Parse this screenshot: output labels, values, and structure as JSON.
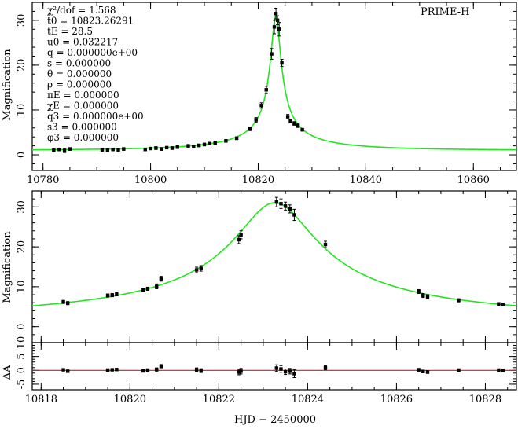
{
  "chart_data": [
    {
      "type": "scatter",
      "panel": "top",
      "title": "",
      "label": "PRIME-H",
      "xlabel": "",
      "ylabel": "Magnification",
      "xlim": [
        10778,
        10868
      ],
      "ylim": [
        -3.5,
        34
      ],
      "xticks": [
        10780,
        10800,
        10820,
        10840,
        10860
      ],
      "yticks": [
        0,
        10,
        20,
        30
      ],
      "model": {
        "t0": 10823.26291,
        "tE": 28.5,
        "u0": 0.032217
      },
      "params": [
        "χ²/dof = 1.568",
        "t0   = 10823.26291",
        "tE   = 28.5",
        "u0   = 0.032217",
        "q    = 0.000000e+00",
        "s    = 0.000000",
        "θ    = 0.000000",
        "ρ    = 0.000000",
        "πE   = 0.000000",
        "χE   = 0.000000",
        "q3   = 0.000000e+00",
        "s3   = 0.000000",
        "φ3   = 0.000000"
      ],
      "x": [
        10782,
        10783,
        10784,
        10785,
        10791,
        10792,
        10793,
        10794,
        10795,
        10799,
        10800,
        10801,
        10802,
        10803,
        10804,
        10805,
        10807,
        10808,
        10809,
        10810,
        10811,
        10812,
        10814,
        10816,
        10818.5,
        10819.6,
        10820.6,
        10821.5,
        10822.5,
        10823.0,
        10823.3,
        10823.6,
        10823.9,
        10824.4,
        10825.5,
        10826.0,
        10826.7,
        10827.4,
        10828.2
      ],
      "y": [
        1.0,
        1.2,
        0.9,
        1.3,
        1.1,
        1.0,
        1.2,
        1.1,
        1.3,
        1.2,
        1.4,
        1.5,
        1.3,
        1.6,
        1.5,
        1.7,
        2.0,
        1.9,
        2.1,
        2.3,
        2.5,
        2.6,
        3.1,
        3.7,
        5.8,
        7.8,
        11.0,
        14.5,
        22.5,
        28.5,
        31.5,
        30.0,
        28.0,
        20.5,
        8.5,
        7.5,
        7.0,
        6.5,
        5.6
      ],
      "yerr": [
        0.3,
        0.3,
        0.4,
        0.3,
        0.2,
        0.3,
        0.3,
        0.2,
        0.3,
        0.3,
        0.2,
        0.3,
        0.3,
        0.2,
        0.3,
        0.3,
        0.3,
        0.3,
        0.3,
        0.3,
        0.3,
        0.3,
        0.3,
        0.3,
        0.4,
        0.5,
        0.6,
        0.8,
        1.2,
        1.5,
        1.2,
        1.0,
        1.5,
        0.8,
        0.5,
        0.4,
        0.4,
        0.4,
        0.3
      ]
    },
    {
      "type": "scatter",
      "panel": "middle",
      "title": "",
      "xlabel": "",
      "ylabel": "Magnification",
      "xlim": [
        10817.8,
        10828.7
      ],
      "ylim": [
        -4,
        34
      ],
      "xticks": [
        10818,
        10820,
        10822,
        10824,
        10826,
        10828
      ],
      "yticks": [
        0,
        10,
        20,
        30
      ],
      "x": [
        10818.5,
        10818.6,
        10819.5,
        10819.6,
        10819.7,
        10820.3,
        10820.4,
        10820.6,
        10820.7,
        10821.5,
        10821.6,
        10822.45,
        10822.5,
        10823.3,
        10823.4,
        10823.5,
        10823.6,
        10823.7,
        10824.4,
        10826.5,
        10826.6,
        10826.7,
        10827.4,
        10828.3,
        10828.4
      ],
      "y": [
        6.2,
        5.9,
        7.8,
        7.9,
        8.1,
        9.2,
        9.5,
        10.1,
        12.0,
        14.2,
        14.6,
        21.8,
        23.0,
        31.2,
        30.8,
        30.2,
        29.5,
        28.0,
        20.6,
        8.8,
        7.8,
        7.5,
        6.6,
        5.7,
        5.6
      ],
      "yerr": [
        0.4,
        0.4,
        0.4,
        0.4,
        0.4,
        0.4,
        0.4,
        0.6,
        0.6,
        0.7,
        0.7,
        1.0,
        1.0,
        1.2,
        1.2,
        1.0,
        1.0,
        1.4,
        0.8,
        0.5,
        0.5,
        0.5,
        0.4,
        0.3,
        0.3
      ]
    },
    {
      "type": "scatter",
      "panel": "bottom",
      "title": "",
      "xlabel": "HJD − 2450000",
      "ylabel": "ΔA",
      "xlim": [
        10817.8,
        10828.7
      ],
      "ylim": [
        -7,
        10
      ],
      "xticks": [
        10818,
        10820,
        10822,
        10824,
        10826,
        10828
      ],
      "yticks": [
        -5,
        0,
        5,
        10
      ],
      "x": [
        10818.5,
        10818.6,
        10819.5,
        10819.6,
        10819.7,
        10820.3,
        10820.4,
        10820.6,
        10820.7,
        10821.5,
        10821.6,
        10822.45,
        10822.5,
        10823.3,
        10823.4,
        10823.5,
        10823.6,
        10823.7,
        10824.4,
        10826.5,
        10826.6,
        10826.7,
        10827.4,
        10828.3,
        10828.4
      ],
      "y": [
        0.2,
        -0.3,
        0.1,
        0.2,
        0.3,
        -0.2,
        0.1,
        0.3,
        1.5,
        0.2,
        -0.1,
        -0.6,
        -0.3,
        0.8,
        0.5,
        -0.5,
        -0.3,
        -1.2,
        1.0,
        0.2,
        -0.4,
        -0.6,
        0.1,
        0.1,
        0.0
      ],
      "yerr": [
        0.4,
        0.4,
        0.4,
        0.4,
        0.4,
        0.4,
        0.4,
        0.6,
        0.6,
        0.7,
        0.7,
        1.0,
        1.0,
        1.2,
        1.2,
        1.0,
        1.0,
        1.4,
        0.8,
        0.5,
        0.5,
        0.5,
        0.4,
        0.3,
        0.3
      ]
    }
  ]
}
